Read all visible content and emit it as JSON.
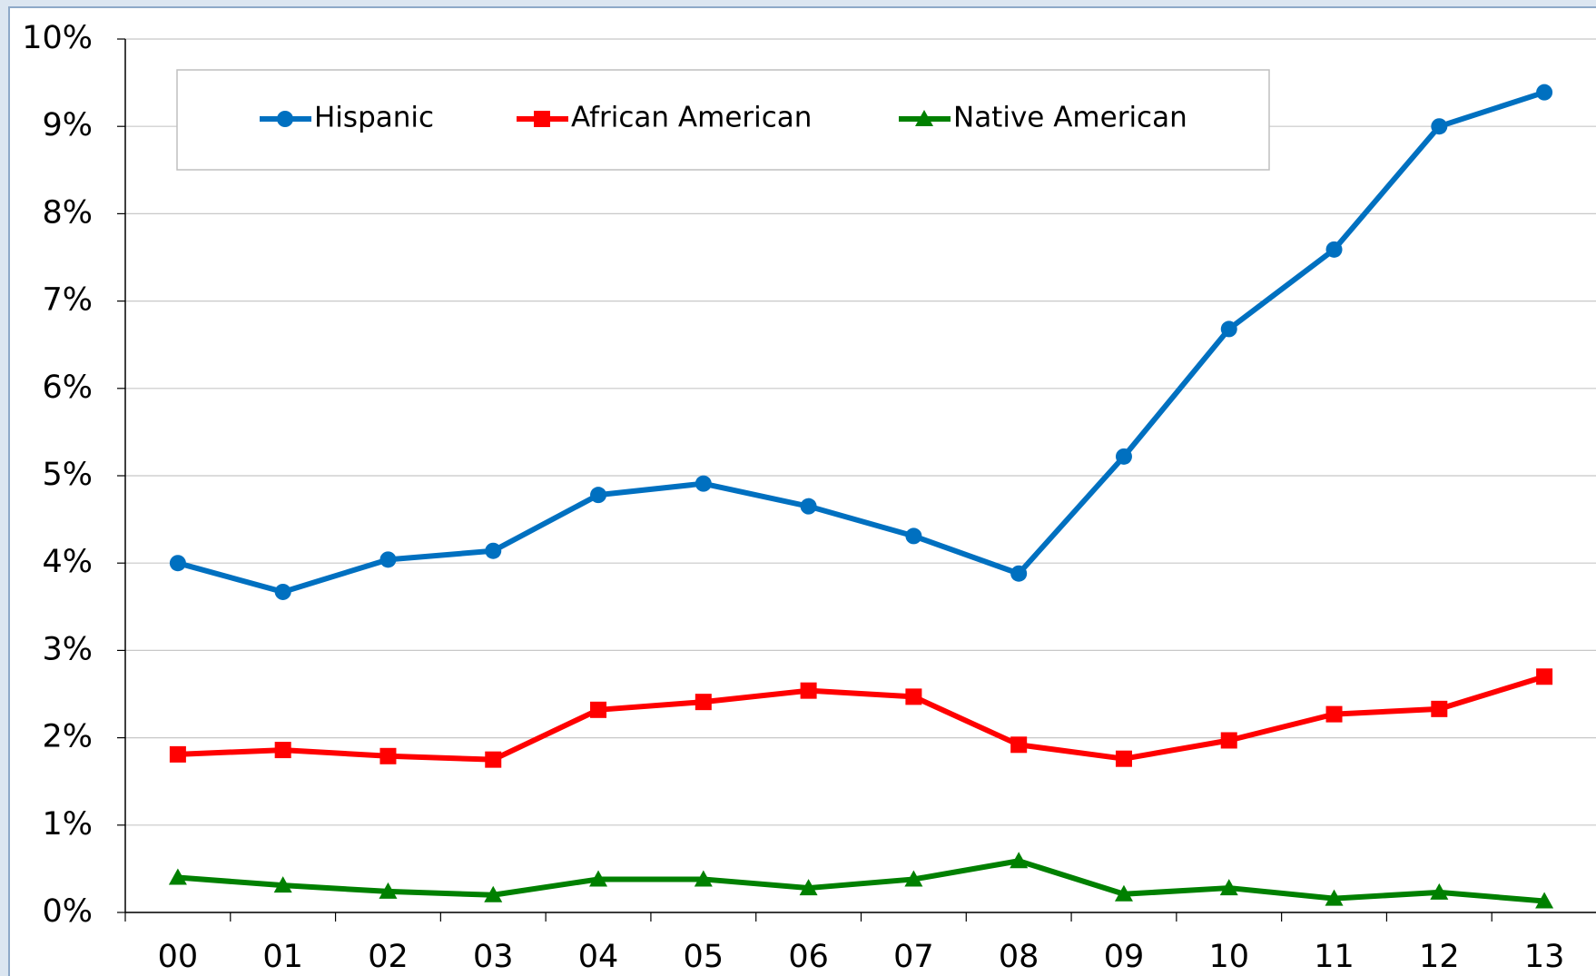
{
  "chart_data": {
    "type": "line",
    "categories": [
      "00",
      "01",
      "02",
      "03",
      "04",
      "05",
      "06",
      "07",
      "08",
      "09",
      "10",
      "11",
      "12",
      "13"
    ],
    "series": [
      {
        "name": "Hispanic",
        "color": "#0070c0",
        "marker": "circle",
        "values": [
          4.0,
          3.67,
          4.04,
          4.14,
          4.78,
          4.91,
          4.65,
          4.31,
          3.88,
          5.22,
          6.68,
          7.59,
          9.0,
          9.39
        ]
      },
      {
        "name": "African American",
        "color": "#ff0000",
        "marker": "square",
        "values": [
          1.81,
          1.86,
          1.79,
          1.75,
          2.32,
          2.41,
          2.54,
          2.47,
          1.92,
          1.76,
          1.97,
          2.27,
          2.33,
          2.7
        ]
      },
      {
        "name": "Native American",
        "color": "#008000",
        "marker": "triangle",
        "values": [
          0.4,
          0.31,
          0.24,
          0.2,
          0.38,
          0.38,
          0.28,
          0.38,
          0.59,
          0.21,
          0.28,
          0.16,
          0.23,
          0.13
        ]
      }
    ],
    "ylim": [
      0,
      10
    ],
    "yticks": [
      {
        "value": 0,
        "label": "0%"
      },
      {
        "value": 1,
        "label": "1%"
      },
      {
        "value": 2,
        "label": "2%"
      },
      {
        "value": 3,
        "label": "3%"
      },
      {
        "value": 4,
        "label": "4%"
      },
      {
        "value": 5,
        "label": "5%"
      },
      {
        "value": 6,
        "label": "6%"
      },
      {
        "value": 7,
        "label": "7%"
      },
      {
        "value": 8,
        "label": "8%"
      },
      {
        "value": 9,
        "label": "9%"
      },
      {
        "value": 10,
        "label": "10%"
      }
    ],
    "grid": true,
    "legend": "top"
  }
}
